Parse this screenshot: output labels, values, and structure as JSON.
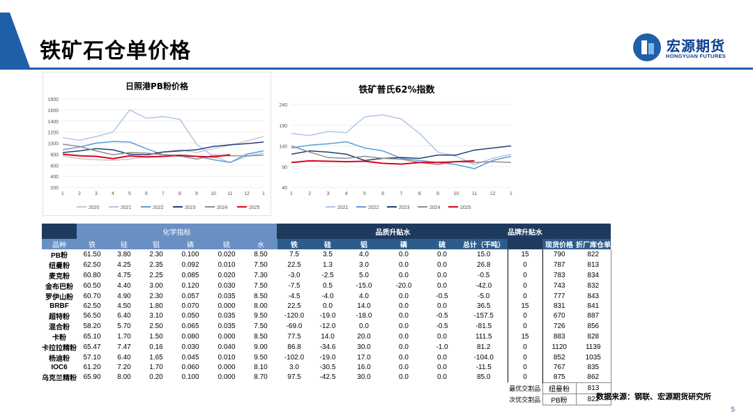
{
  "page": {
    "title": "铁矿石仓单价格",
    "page_number": "5",
    "source": "数据来源：钢联、宏源期货研究所",
    "logo_cn": "宏源期货",
    "logo_en": "HONGYUAN FUTURES"
  },
  "colors": {
    "brand_blue": "#1f5fa8",
    "series": {
      "2020": "#c8c8c8",
      "2021": "#aec6ea",
      "2022": "#5b9bd5",
      "2023": "#1f3f7a",
      "2024": "#8c8c8c",
      "2025": "#e0001b"
    }
  },
  "chart_data": [
    {
      "type": "line",
      "title": "日照港PB粉价格",
      "x_ticks": [
        "1",
        "2",
        "3",
        "4",
        "5",
        "6",
        "7",
        "8",
        "9",
        "10",
        "11",
        "12",
        "1"
      ],
      "y_ticks": [
        "200",
        "400",
        "600",
        "800",
        "1000",
        "1200",
        "1400",
        "1600",
        "1800"
      ],
      "ylim": [
        200,
        1800
      ],
      "legend": "bottom",
      "series": [
        {
          "name": "2020",
          "values": [
            770,
            720,
            700,
            690,
            710,
            760,
            840,
            880,
            830,
            900,
            960,
            1040,
            1120
          ]
        },
        {
          "name": "2021",
          "values": [
            1100,
            1050,
            1120,
            1200,
            1600,
            1450,
            1480,
            1430,
            980,
            760,
            650,
            760,
            820
          ]
        },
        {
          "name": "2022",
          "values": [
            880,
            930,
            1000,
            1030,
            1020,
            900,
            790,
            760,
            760,
            700,
            650,
            800,
            860
          ]
        },
        {
          "name": "2023",
          "values": [
            830,
            860,
            900,
            880,
            800,
            790,
            840,
            860,
            880,
            940,
            970,
            990,
            1020
          ]
        },
        {
          "name": "2024",
          "values": [
            980,
            940,
            860,
            790,
            830,
            820,
            790,
            770,
            710,
            780,
            770,
            770,
            780
          ]
        },
        {
          "name": "2025",
          "values": [
            800,
            770,
            760,
            720,
            770,
            750,
            760,
            780,
            760,
            750,
            790
          ]
        }
      ]
    },
    {
      "type": "line",
      "title": "铁矿普氏62%指数",
      "x_ticks": [
        "1",
        "2",
        "3",
        "4",
        "5",
        "6",
        "7",
        "8",
        "9",
        "10",
        "11",
        "12",
        "1"
      ],
      "y_ticks": [
        "40",
        "90",
        "140",
        "190",
        "240"
      ],
      "ylim": [
        40,
        240
      ],
      "legend": "bottom",
      "series": [
        {
          "name": "2021",
          "values": [
            170,
            165,
            175,
            172,
            210,
            215,
            205,
            170,
            125,
            115,
            95,
            110,
            120
          ]
        },
        {
          "name": "2022",
          "values": [
            135,
            142,
            145,
            150,
            135,
            128,
            110,
            105,
            100,
            95,
            85,
            105,
            115
          ]
        },
        {
          "name": "2023",
          "values": [
            120,
            128,
            125,
            120,
            105,
            110,
            112,
            110,
            118,
            118,
            130,
            135,
            140
          ]
        },
        {
          "name": "2024",
          "values": [
            140,
            125,
            112,
            110,
            115,
            110,
            108,
            100,
            95,
            102,
            100,
            102,
            100
          ]
        },
        {
          "name": "2025",
          "values": [
            100,
            104,
            103,
            102,
            103,
            98,
            96,
            100,
            100,
            102,
            104
          ]
        }
      ]
    }
  ],
  "table": {
    "group_headers": {
      "chem": "化学指标",
      "quality": "品质升贴水",
      "brand": "品牌升贴水"
    },
    "columns": [
      "品种",
      "铁",
      "硅",
      "铝",
      "磷",
      "硫",
      "水",
      "铁",
      "硅",
      "铝",
      "磷",
      "硫",
      "总计（干吨）",
      "",
      "现货价格",
      "折厂库仓单"
    ],
    "rows": [
      [
        "PB粉",
        "61.50",
        "3.80",
        "2.30",
        "0.100",
        "0.020",
        "8.50",
        "7.5",
        "3.5",
        "4.0",
        "0.0",
        "0.0",
        "15.0",
        "15",
        "790",
        "822"
      ],
      [
        "纽曼粉",
        "62.50",
        "4.25",
        "2.35",
        "0.092",
        "0.010",
        "7.50",
        "22.5",
        "1.3",
        "3.0",
        "0.0",
        "0.0",
        "26.8",
        "0",
        "787",
        "813"
      ],
      [
        "麦克粉",
        "60.80",
        "4.75",
        "2.25",
        "0.085",
        "0.020",
        "7.30",
        "-3.0",
        "-2.5",
        "5.0",
        "0.0",
        "0.0",
        "-0.5",
        "0",
        "783",
        "834"
      ],
      [
        "金布巴粉",
        "60.50",
        "4.40",
        "3.00",
        "0.120",
        "0.030",
        "7.50",
        "-7.5",
        "0.5",
        "-15.0",
        "-20.0",
        "0.0",
        "-42.0",
        "0",
        "743",
        "832"
      ],
      [
        "罗伊山粉",
        "60.70",
        "4.90",
        "2.30",
        "0.057",
        "0.035",
        "8.50",
        "-4.5",
        "-4.0",
        "4.0",
        "0.0",
        "-0.5",
        "-5.0",
        "0",
        "777",
        "843"
      ],
      [
        "BRBF",
        "62.50",
        "4.50",
        "1.80",
        "0.070",
        "0.000",
        "8.00",
        "22.5",
        "0.0",
        "14.0",
        "0.0",
        "0.0",
        "36.5",
        "15",
        "831",
        "841"
      ],
      [
        "超特粉",
        "56.50",
        "6.40",
        "3.10",
        "0.050",
        "0.035",
        "9.50",
        "-120.0",
        "-19.0",
        "-18.0",
        "0.0",
        "-0.5",
        "-157.5",
        "0",
        "670",
        "887"
      ],
      [
        "混合粉",
        "58.20",
        "5.70",
        "2.50",
        "0.065",
        "0.035",
        "7.50",
        "-69.0",
        "-12.0",
        "0.0",
        "0.0",
        "-0.5",
        "-81.5",
        "0",
        "726",
        "856"
      ],
      [
        "卡粉",
        "65.10",
        "1.70",
        "1.50",
        "0.080",
        "0.000",
        "8.50",
        "77.5",
        "14.0",
        "20.0",
        "0.0",
        "0.0",
        "111.5",
        "15",
        "883",
        "828"
      ],
      [
        "卡拉拉精粉",
        "65.47",
        "7.47",
        "0.16",
        "0.030",
        "0.040",
        "9.00",
        "86.8",
        "-34.6",
        "30.0",
        "0.0",
        "-1.0",
        "81.2",
        "0",
        "1120",
        "1139"
      ],
      [
        "杨迪粉",
        "57.10",
        "6.40",
        "1.65",
        "0.045",
        "0.010",
        "9.50",
        "-102.0",
        "-19.0",
        "17.0",
        "0.0",
        "0.0",
        "-104.0",
        "0",
        "852",
        "1035"
      ],
      [
        "IOC6",
        "61.20",
        "7.20",
        "1.70",
        "0.060",
        "0.000",
        "8.10",
        "3.0",
        "-30.5",
        "16.0",
        "0.0",
        "0.0",
        "-11.5",
        "0",
        "767",
        "835"
      ],
      [
        "乌克兰精粉",
        "65.90",
        "8.00",
        "0.20",
        "0.100",
        "0.000",
        "8.70",
        "97.5",
        "-42.5",
        "30.0",
        "0.0",
        "0.0",
        "85.0",
        "0",
        "875",
        "862"
      ]
    ],
    "best": {
      "label": "最优交割品",
      "name": "纽曼粉",
      "value": "813"
    },
    "second": {
      "label": "次优交割品",
      "name": "PB粉",
      "value": "822"
    }
  }
}
